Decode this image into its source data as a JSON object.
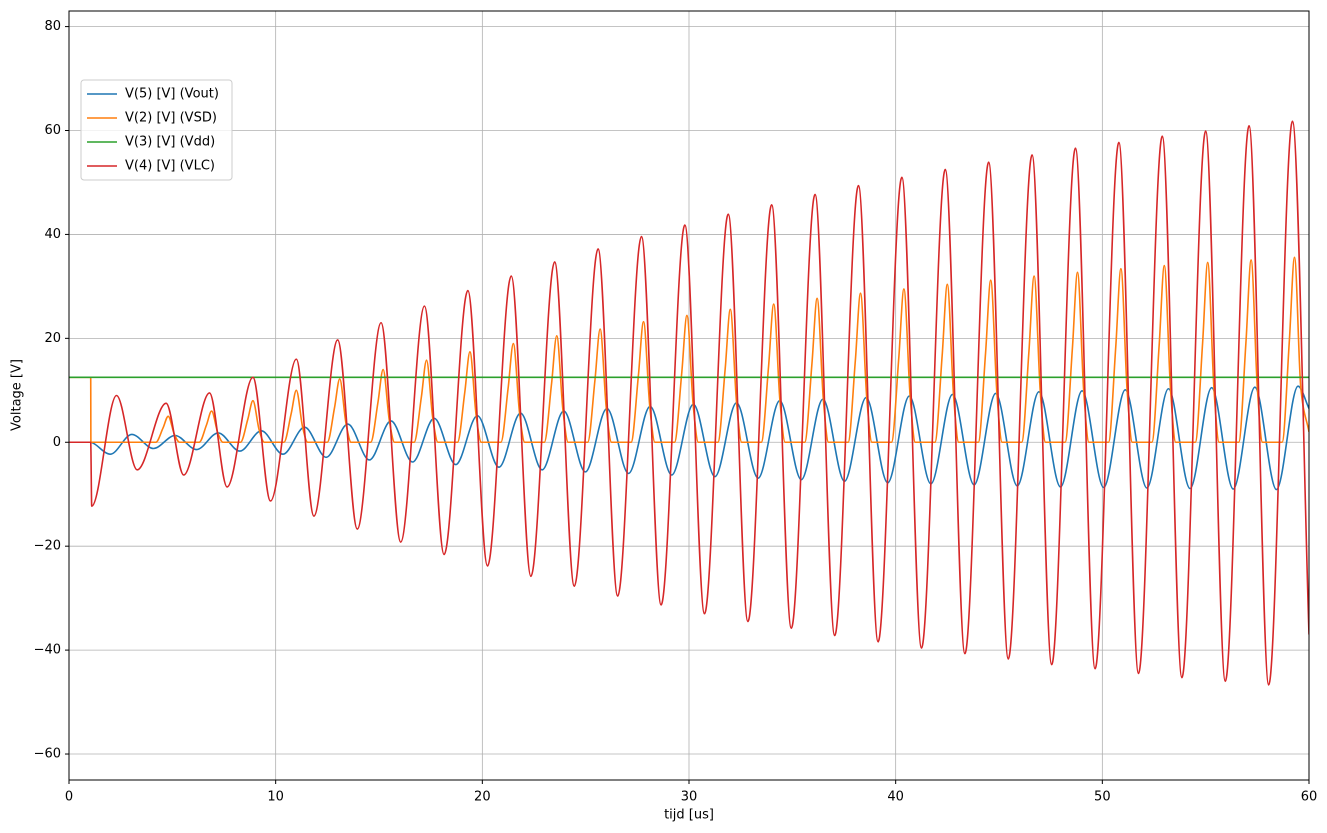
{
  "chart_data": {
    "type": "line",
    "xlabel": "tijd [us]",
    "ylabel": "Voltage [V]",
    "xlim": [
      0,
      60
    ],
    "xticks": [
      0,
      10,
      20,
      30,
      40,
      50,
      60
    ],
    "ylim": [
      -65,
      83
    ],
    "yticks": [
      {
        "value": -60,
        "label": "−60"
      },
      {
        "value": -40,
        "label": "−40"
      },
      {
        "value": -20,
        "label": "−20"
      },
      0,
      20,
      40,
      60,
      80
    ],
    "grid": true,
    "legend": "upper left",
    "series": [
      {
        "name": "V(5) [V]  (Vout)",
        "color": "#1f77b4",
        "x": [
          0,
          1.0,
          2.0,
          3.04,
          4.085,
          5.13,
          6.175,
          7.22,
          8.265,
          9.31,
          10.355,
          11.4,
          12.445,
          13.49,
          14.535,
          15.58,
          16.625,
          17.67,
          18.715,
          19.76,
          20.805,
          21.85,
          22.895,
          23.94,
          24.985,
          26.03,
          27.075,
          28.12,
          29.165,
          30.21,
          31.255,
          32.3,
          33.345,
          34.39,
          35.435,
          36.48,
          37.525,
          38.57,
          39.615,
          40.66,
          41.705,
          42.75,
          43.795,
          44.84,
          45.885,
          46.93,
          47.975,
          49.02,
          50.065,
          51.11,
          52.155,
          53.2,
          54.245,
          55.29,
          56.335,
          57.38,
          58.425,
          59.47,
          60
        ],
        "values": [
          0,
          0,
          -2.3,
          1.5,
          -1.2,
          1.3,
          -1.4,
          1.8,
          -1.7,
          2.2,
          -2.3,
          2.9,
          -2.9,
          3.5,
          -3.4,
          4.1,
          -3.8,
          4.6,
          -4.3,
          5.1,
          -4.8,
          5.6,
          -5.3,
          6.0,
          -5.7,
          6.5,
          -6.0,
          6.9,
          -6.3,
          7.3,
          -6.6,
          7.6,
          -6.9,
          8.0,
          -7.2,
          8.3,
          -7.5,
          8.6,
          -7.8,
          8.9,
          -8.0,
          9.2,
          -8.2,
          9.4,
          -8.4,
          9.7,
          -8.6,
          9.9,
          -8.7,
          10.1,
          -8.8,
          10.3,
          -8.9,
          10.5,
          -9.0,
          10.6,
          -9.1,
          10.8,
          6.5
        ]
      },
      {
        "name": "V(2) [V]  (VSD)",
        "color": "#ff7f0e",
        "x": [
          0,
          1.05,
          1.06,
          4.2,
          4.55,
          4.8,
          5.1,
          5.35,
          6.3,
          6.65,
          6.9,
          7.2,
          7.45,
          8.3,
          8.65,
          8.9,
          9.2,
          9.45,
          10.4,
          10.75,
          11.0,
          11.3,
          11.55,
          12.5,
          12.85,
          13.1,
          13.4,
          13.65,
          14.6,
          14.95,
          15.2,
          15.5,
          15.75,
          16.7,
          17.05,
          17.3,
          17.6,
          17.85,
          18.8,
          19.15,
          19.4,
          19.7,
          19.95,
          20.9,
          21.25,
          21.5,
          21.8,
          22.05,
          23.0,
          23.35,
          23.6,
          23.9,
          24.15,
          25.1,
          25.45,
          25.7,
          26.0,
          26.25,
          27.2,
          27.55,
          27.8,
          28.1,
          28.35,
          29.3,
          29.65,
          29.9,
          30.2,
          30.45,
          31.4,
          31.75,
          32.0,
          32.3,
          32.55,
          33.5,
          33.85,
          34.1,
          34.4,
          34.65,
          35.6,
          35.95,
          36.2,
          36.5,
          36.75,
          37.7,
          38.05,
          38.3,
          38.6,
          38.85,
          39.8,
          40.15,
          40.4,
          40.7,
          40.95,
          41.9,
          42.25,
          42.5,
          42.8,
          43.05,
          44.0,
          44.35,
          44.6,
          44.9,
          45.15,
          46.1,
          46.45,
          46.7,
          47.0,
          47.25,
          48.2,
          48.55,
          48.8,
          49.1,
          49.35,
          50.3,
          50.65,
          50.9,
          51.2,
          51.45,
          52.4,
          52.75,
          53.0,
          53.3,
          53.55,
          54.5,
          54.85,
          55.1,
          55.4,
          55.65,
          56.6,
          56.95,
          57.2,
          57.5,
          57.75,
          58.7,
          59.05,
          59.3,
          59.6,
          60
        ],
        "values": [
          12.5,
          12.5,
          0,
          0,
          2.75,
          5,
          1.5,
          0,
          0,
          3.3,
          6,
          1.8,
          0,
          0,
          4.4,
          8,
          2.4,
          0,
          0,
          5.5,
          10,
          3,
          0,
          0,
          6.7,
          12.2,
          3.7,
          0,
          0,
          7.7,
          14,
          4.2,
          0,
          0,
          8.7,
          15.8,
          4.7,
          0,
          0,
          9.6,
          17.4,
          5.2,
          0,
          0,
          10.5,
          19,
          5.7,
          0,
          0,
          11.3,
          20.5,
          6.2,
          0,
          0,
          12,
          21.8,
          6.5,
          0,
          0,
          12.8,
          23.2,
          7,
          0,
          0,
          13.4,
          24.4,
          7.3,
          0,
          0,
          14.1,
          25.6,
          7.7,
          0,
          0,
          14.6,
          26.6,
          8,
          0,
          0,
          15.2,
          27.7,
          8.3,
          0,
          0,
          15.8,
          28.7,
          8.6,
          0,
          0,
          16.2,
          29.5,
          8.9,
          0,
          0,
          16.7,
          30.4,
          9.1,
          0,
          0,
          17.2,
          31.2,
          9.4,
          0,
          0,
          17.6,
          32,
          9.6,
          0,
          0,
          18,
          32.7,
          9.8,
          0,
          0,
          18.4,
          33.4,
          10,
          0,
          0,
          18.7,
          34,
          10.2,
          0,
          0,
          19,
          34.6,
          10.4,
          0,
          0,
          19.3,
          35.1,
          10.5,
          0,
          0,
          19.6,
          35.6,
          10.7,
          2
        ]
      },
      {
        "name": "V(3) [V]  (Vdd)",
        "color": "#2ca02c",
        "x": [
          0,
          60
        ],
        "values": [
          12.5,
          12.5
        ]
      },
      {
        "name": "V(4) [V]  (VLC)",
        "color": "#d62728",
        "x": [
          0,
          1.05,
          1.1,
          2.3,
          3.3,
          4.7,
          5.55,
          6.8,
          7.65,
          8.9,
          9.75,
          11.0,
          11.85,
          13.0,
          13.95,
          15.1,
          16.05,
          17.2,
          18.15,
          19.3,
          20.25,
          21.4,
          22.35,
          23.5,
          24.45,
          25.6,
          26.55,
          27.7,
          28.65,
          29.8,
          30.75,
          31.9,
          32.85,
          34.0,
          34.95,
          36.1,
          37.05,
          38.2,
          39.15,
          40.3,
          41.25,
          42.4,
          43.35,
          44.5,
          45.45,
          46.6,
          47.55,
          48.7,
          49.65,
          50.8,
          51.75,
          52.9,
          53.85,
          55.0,
          55.95,
          57.1,
          58.05,
          59.2,
          60
        ],
        "values": [
          0,
          0,
          -12.3,
          9,
          -5.3,
          7.5,
          -6.3,
          9.5,
          -8.6,
          12.5,
          -11.3,
          16,
          -14.2,
          19.7,
          -16.7,
          23,
          -19.2,
          26.2,
          -21.6,
          29.2,
          -23.8,
          32,
          -25.8,
          34.7,
          -27.7,
          37.2,
          -29.6,
          39.6,
          -31.3,
          41.8,
          -33,
          43.9,
          -34.5,
          45.7,
          -35.8,
          47.7,
          -37.2,
          49.4,
          -38.4,
          51,
          -39.6,
          52.5,
          -40.7,
          53.9,
          -41.7,
          55.3,
          -42.8,
          56.6,
          -43.6,
          57.7,
          -44.5,
          58.9,
          -45.3,
          59.9,
          -46.0,
          60.9,
          -46.7,
          61.8,
          -37
        ]
      }
    ]
  }
}
